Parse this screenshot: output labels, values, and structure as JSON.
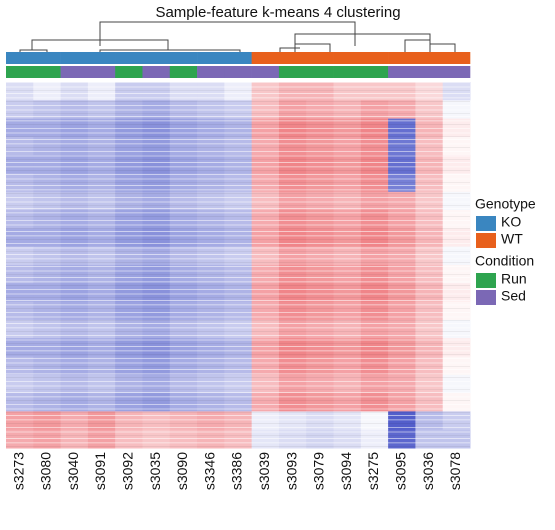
{
  "chart_data": {
    "type": "heatmap",
    "title": "Sample-feature k-means 4 clustering",
    "samples": [
      "s3273",
      "s3080",
      "s3040",
      "s3091",
      "s3092",
      "s3035",
      "s3090",
      "s3346",
      "s3386",
      "s3039",
      "s3093",
      "s3079",
      "s3094",
      "s3275",
      "s3095",
      "s3036",
      "s3078"
    ],
    "annotations": [
      {
        "name": "Genotype",
        "levels": [
          {
            "name": "KO",
            "color": "#3a86c0"
          },
          {
            "name": "WT",
            "color": "#e8601c"
          }
        ],
        "values": [
          "KO",
          "KO",
          "KO",
          "KO",
          "KO",
          "KO",
          "KO",
          "KO",
          "KO",
          "WT",
          "WT",
          "WT",
          "WT",
          "WT",
          "WT",
          "WT",
          "WT"
        ]
      },
      {
        "name": "Condition",
        "levels": [
          {
            "name": "Run",
            "color": "#2ea44f"
          },
          {
            "name": "Sed",
            "color": "#7b68b5"
          }
        ],
        "values": [
          "Run",
          "Run",
          "Sed",
          "Sed",
          "Run",
          "Sed",
          "Run",
          "Sed",
          "Sed",
          "Sed",
          "Run",
          "Run",
          "Run",
          "Run",
          "Sed",
          "Sed",
          "Sed"
        ]
      }
    ],
    "zlim": [
      -1,
      1
    ],
    "colors": {
      "low": "#4a56c8",
      "mid": "#ffffff",
      "high": "#e8434a"
    },
    "matrix": [
      [
        -0.2,
        -0.1,
        -0.2,
        -0.1,
        -0.3,
        -0.3,
        -0.2,
        -0.2,
        -0.1,
        0.3,
        0.4,
        0.4,
        0.3,
        0.3,
        0.3,
        0.2,
        -0.2
      ],
      [
        -0.3,
        -0.35,
        -0.4,
        -0.35,
        -0.45,
        -0.5,
        -0.4,
        -0.35,
        -0.3,
        0.35,
        0.5,
        0.45,
        0.4,
        0.5,
        0.45,
        0.3,
        -0.05
      ],
      [
        -0.5,
        -0.5,
        -0.55,
        -0.5,
        -0.6,
        -0.65,
        -0.55,
        -0.5,
        -0.45,
        0.5,
        0.65,
        0.6,
        0.55,
        0.65,
        -0.85,
        0.4,
        0.1
      ],
      [
        -0.4,
        -0.45,
        -0.5,
        -0.45,
        -0.55,
        -0.6,
        -0.5,
        -0.45,
        -0.4,
        0.45,
        0.6,
        0.55,
        0.5,
        0.6,
        -0.8,
        0.35,
        0.05
      ],
      [
        -0.5,
        -0.5,
        -0.55,
        -0.5,
        -0.6,
        -0.65,
        -0.55,
        -0.5,
        -0.45,
        0.5,
        0.65,
        0.6,
        0.55,
        0.65,
        -0.85,
        0.4,
        0.1
      ],
      [
        -0.4,
        -0.45,
        -0.5,
        -0.45,
        -0.55,
        -0.6,
        -0.5,
        -0.45,
        -0.4,
        0.45,
        0.6,
        0.55,
        0.5,
        0.6,
        -0.75,
        0.35,
        0.05
      ],
      [
        -0.3,
        -0.35,
        -0.4,
        -0.35,
        -0.45,
        -0.5,
        -0.4,
        -0.35,
        -0.3,
        0.35,
        0.5,
        0.45,
        0.4,
        0.5,
        0.45,
        0.3,
        -0.05
      ],
      [
        -0.4,
        -0.45,
        -0.5,
        -0.45,
        -0.55,
        -0.6,
        -0.5,
        -0.45,
        -0.4,
        0.45,
        0.6,
        0.55,
        0.5,
        0.6,
        0.5,
        0.35,
        0.05
      ],
      [
        -0.5,
        -0.5,
        -0.55,
        -0.5,
        -0.6,
        -0.65,
        -0.55,
        -0.5,
        -0.45,
        0.5,
        0.65,
        0.6,
        0.55,
        0.65,
        0.55,
        0.4,
        0.1
      ],
      [
        -0.3,
        -0.35,
        -0.4,
        -0.35,
        -0.45,
        -0.5,
        -0.4,
        -0.35,
        -0.3,
        0.35,
        0.5,
        0.45,
        0.4,
        0.5,
        0.45,
        0.3,
        -0.05
      ],
      [
        -0.4,
        -0.45,
        -0.5,
        -0.45,
        -0.55,
        -0.6,
        -0.5,
        -0.45,
        -0.4,
        0.45,
        0.6,
        0.55,
        0.5,
        0.6,
        0.5,
        0.35,
        0.05
      ],
      [
        -0.5,
        -0.5,
        -0.55,
        -0.5,
        -0.6,
        -0.65,
        -0.55,
        -0.5,
        -0.45,
        0.5,
        0.65,
        0.6,
        0.55,
        0.65,
        0.55,
        0.4,
        0.1
      ],
      [
        -0.4,
        -0.45,
        -0.5,
        -0.45,
        -0.55,
        -0.6,
        -0.5,
        -0.45,
        -0.4,
        0.45,
        0.6,
        0.55,
        0.5,
        0.6,
        0.5,
        0.35,
        0.05
      ],
      [
        -0.3,
        -0.35,
        -0.4,
        -0.35,
        -0.45,
        -0.5,
        -0.4,
        -0.35,
        -0.3,
        0.35,
        0.5,
        0.45,
        0.4,
        0.5,
        0.45,
        0.3,
        -0.05
      ],
      [
        -0.5,
        -0.5,
        -0.55,
        -0.5,
        -0.6,
        -0.65,
        -0.55,
        -0.5,
        -0.45,
        0.5,
        0.65,
        0.6,
        0.55,
        0.65,
        0.55,
        0.4,
        0.1
      ],
      [
        -0.4,
        -0.45,
        -0.5,
        -0.45,
        -0.55,
        -0.6,
        -0.5,
        -0.45,
        -0.4,
        0.45,
        0.6,
        0.55,
        0.5,
        0.6,
        0.5,
        0.35,
        0.05
      ],
      [
        -0.3,
        -0.35,
        -0.4,
        -0.35,
        -0.45,
        -0.5,
        -0.4,
        -0.35,
        -0.3,
        0.35,
        0.5,
        0.45,
        0.4,
        0.5,
        0.45,
        0.3,
        -0.05
      ],
      [
        -0.4,
        -0.45,
        -0.5,
        -0.45,
        -0.55,
        -0.6,
        -0.5,
        -0.45,
        -0.4,
        0.45,
        0.6,
        0.55,
        0.5,
        0.6,
        0.5,
        0.35,
        0.05
      ],
      [
        0.5,
        0.55,
        0.45,
        0.55,
        0.4,
        0.35,
        0.4,
        0.45,
        0.4,
        -0.1,
        -0.15,
        -0.2,
        -0.15,
        -0.05,
        -0.95,
        -0.4,
        -0.3
      ],
      [
        0.45,
        0.5,
        0.4,
        0.5,
        0.35,
        0.3,
        0.35,
        0.4,
        0.35,
        -0.15,
        -0.2,
        -0.25,
        -0.2,
        -0.1,
        -0.9,
        -0.35,
        -0.35
      ]
    ]
  }
}
